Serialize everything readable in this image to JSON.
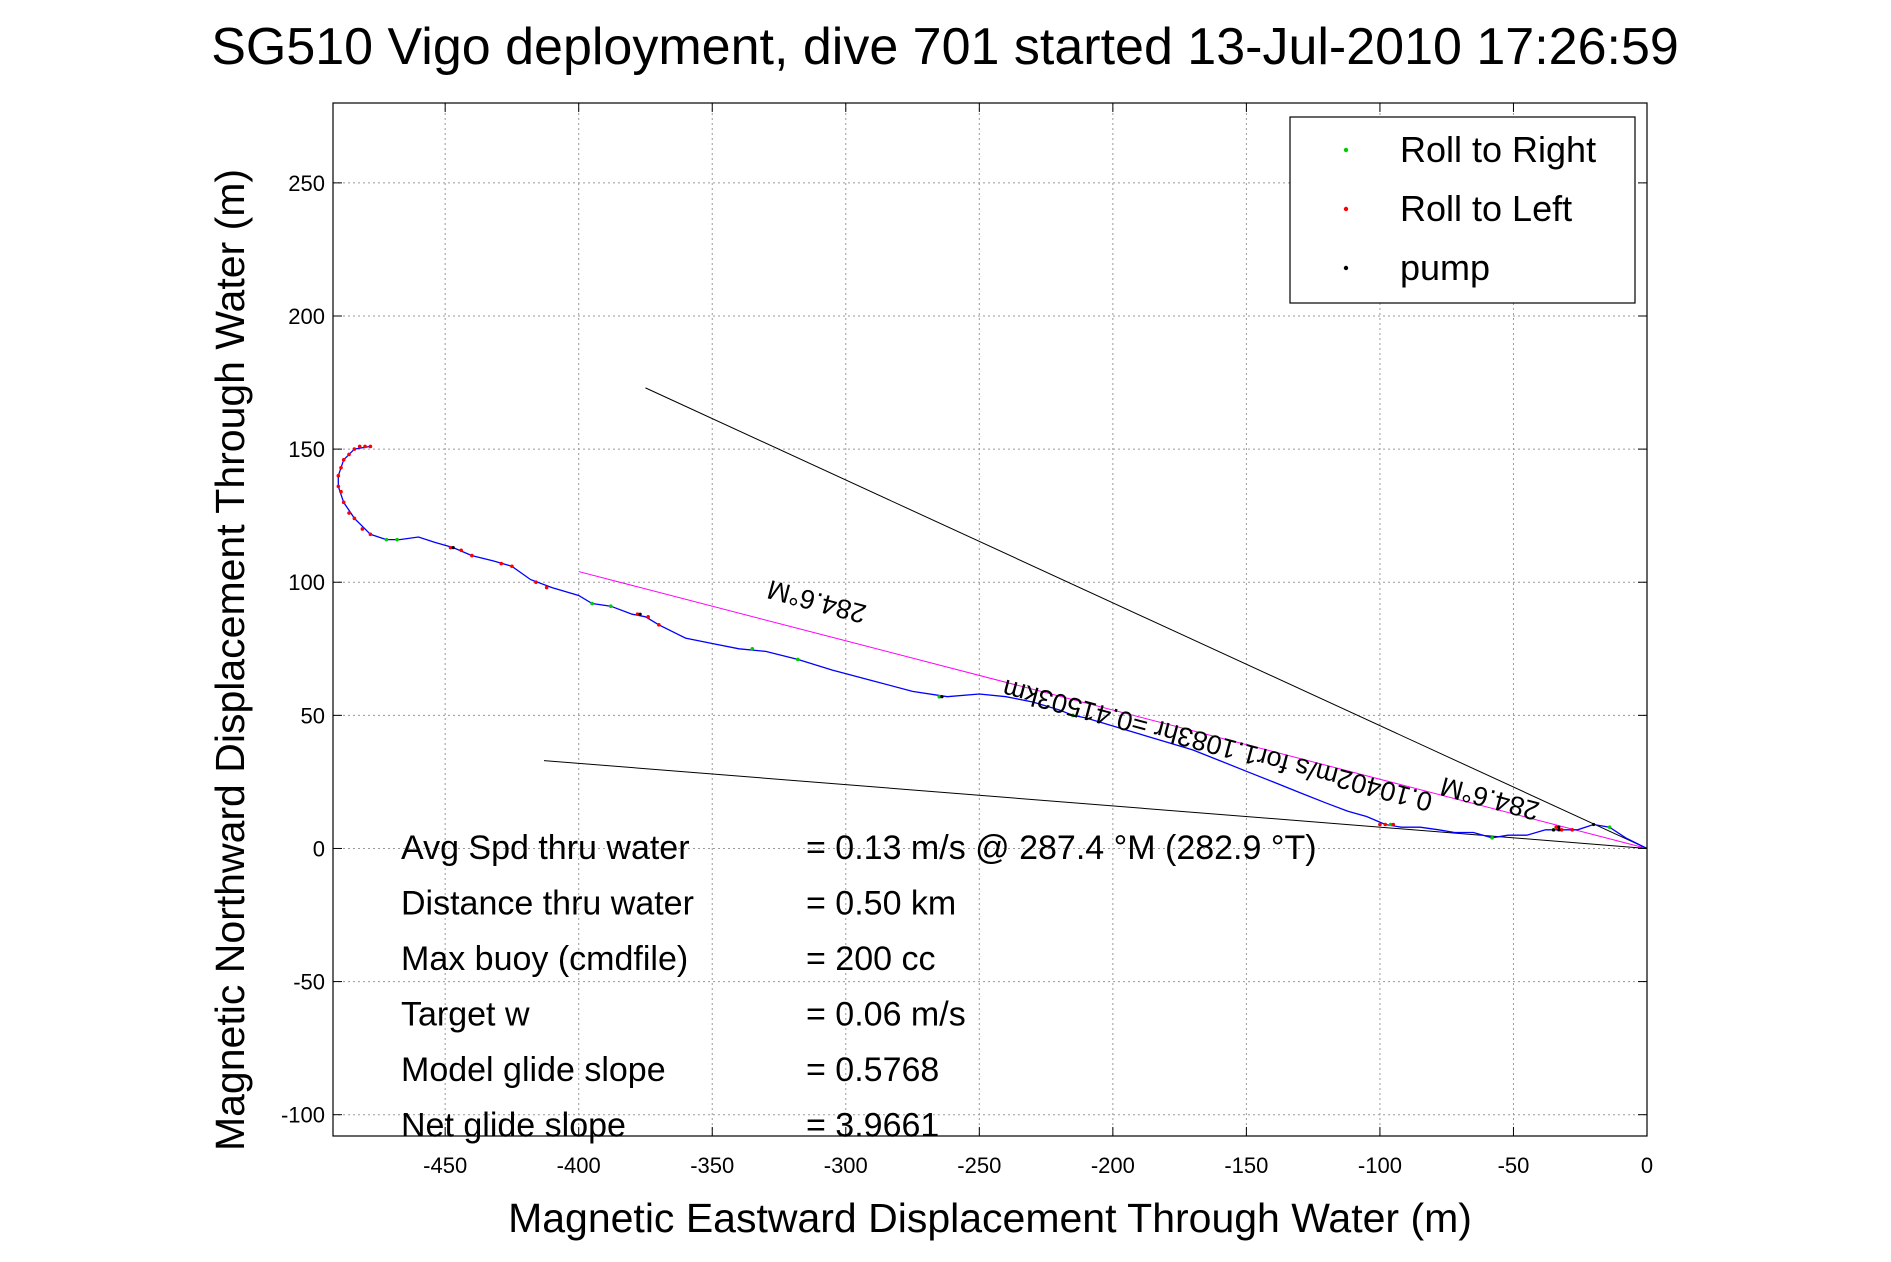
{
  "chart_data": {
    "type": "scatter",
    "title": "SG510 Vigo deployment, dive 701 started 13-Jul-2010 17:26:59",
    "xlabel": "Magnetic Eastward Displacement Through Water (m)",
    "ylabel": "Magnetic Northward Displacement Through Water (m)",
    "xlim": [
      -492,
      0
    ],
    "ylim": [
      -108,
      280
    ],
    "xticks": [
      -450,
      -400,
      -350,
      -300,
      -250,
      -200,
      -150,
      -100,
      -50,
      0
    ],
    "yticks": [
      -100,
      -50,
      0,
      50,
      100,
      150,
      200,
      250
    ],
    "grid": true,
    "legend": {
      "placement": "top-right",
      "entries": [
        {
          "label": "Roll to Right",
          "color": "#00cc00"
        },
        {
          "label": "Roll to Left",
          "color": "#ff0000"
        },
        {
          "label": "pump",
          "color": "#000000"
        }
      ]
    },
    "track": {
      "color": "#0000ff",
      "points": [
        [
          0,
          0
        ],
        [
          -8,
          4
        ],
        [
          -14,
          8
        ],
        [
          -20,
          9
        ],
        [
          -26,
          7
        ],
        [
          -32,
          7
        ],
        [
          -38,
          7
        ],
        [
          -45,
          5
        ],
        [
          -52,
          5
        ],
        [
          -58,
          4
        ],
        [
          -65,
          6
        ],
        [
          -72,
          6
        ],
        [
          -78,
          7
        ],
        [
          -85,
          8
        ],
        [
          -92,
          8
        ],
        [
          -98,
          9
        ],
        [
          -105,
          12
        ],
        [
          -112,
          14
        ],
        [
          -120,
          17
        ],
        [
          -130,
          21
        ],
        [
          -140,
          25
        ],
        [
          -150,
          29
        ],
        [
          -160,
          33
        ],
        [
          -170,
          37
        ],
        [
          -180,
          40
        ],
        [
          -190,
          43
        ],
        [
          -200,
          46
        ],
        [
          -210,
          49
        ],
        [
          -215,
          50
        ],
        [
          -220,
          52
        ],
        [
          -230,
          55
        ],
        [
          -240,
          57
        ],
        [
          -250,
          58
        ],
        [
          -262,
          57
        ],
        [
          -275,
          59
        ],
        [
          -290,
          63
        ],
        [
          -305,
          67
        ],
        [
          -318,
          71
        ],
        [
          -330,
          74
        ],
        [
          -340,
          75
        ],
        [
          -350,
          77
        ],
        [
          -360,
          79
        ],
        [
          -370,
          84
        ],
        [
          -375,
          87
        ],
        [
          -380,
          88
        ],
        [
          -388,
          91
        ],
        [
          -395,
          92
        ],
        [
          -400,
          95
        ],
        [
          -410,
          98
        ],
        [
          -418,
          101
        ],
        [
          -425,
          106
        ],
        [
          -432,
          108
        ],
        [
          -440,
          110
        ],
        [
          -447,
          113
        ],
        [
          -454,
          115
        ],
        [
          -460,
          117
        ],
        [
          -467,
          116
        ],
        [
          -472,
          116
        ],
        [
          -478,
          118
        ],
        [
          -484,
          124
        ],
        [
          -488,
          130
        ],
        [
          -490,
          136
        ],
        [
          -490,
          140
        ],
        [
          -488,
          146
        ],
        [
          -484,
          150
        ],
        [
          -478,
          151
        ]
      ]
    },
    "roll_right_points": [
      [
        -14,
        8
      ],
      [
        -35,
        7
      ],
      [
        -58,
        4
      ],
      [
        -96,
        9
      ],
      [
        -215,
        50
      ],
      [
        -265,
        57
      ],
      [
        -318,
        71
      ],
      [
        -335,
        75
      ],
      [
        -388,
        91
      ],
      [
        -395,
        92
      ],
      [
        -468,
        116
      ],
      [
        -472,
        116
      ]
    ],
    "roll_left_points": [
      [
        -28,
        7
      ],
      [
        -32,
        7
      ],
      [
        -34,
        8
      ],
      [
        -95,
        9
      ],
      [
        -98,
        9
      ],
      [
        -100,
        9
      ],
      [
        -370,
        84
      ],
      [
        -374,
        87
      ],
      [
        -378,
        88
      ],
      [
        -412,
        98
      ],
      [
        -416,
        100
      ],
      [
        -425,
        106
      ],
      [
        -429,
        107
      ],
      [
        -440,
        110
      ],
      [
        -444,
        112
      ],
      [
        -448,
        113
      ],
      [
        -478,
        118
      ],
      [
        -481,
        120
      ],
      [
        -484,
        124
      ],
      [
        -486,
        126
      ],
      [
        -488,
        130
      ],
      [
        -489,
        134
      ],
      [
        -490,
        136
      ],
      [
        -490,
        140
      ],
      [
        -489,
        143
      ],
      [
        -488,
        146
      ],
      [
        -486,
        148
      ],
      [
        -484,
        150
      ],
      [
        -482,
        151
      ],
      [
        -480,
        151
      ],
      [
        -478,
        151
      ]
    ],
    "pump_points": [
      [
        -20,
        9
      ],
      [
        -35,
        7
      ],
      [
        -33,
        8
      ],
      [
        -33,
        7
      ],
      [
        -264,
        57
      ],
      [
        -377,
        88
      ],
      [
        -447,
        113
      ]
    ],
    "lines": [
      {
        "color": "#000000",
        "from": [
          0,
          0
        ],
        "to": [
          -375,
          173
        ]
      },
      {
        "color": "#000000",
        "from": [
          0,
          0
        ],
        "to": [
          -413,
          33
        ]
      },
      {
        "color": "#ff00ff",
        "from": [
          0,
          0
        ],
        "to": [
          -400,
          104
        ]
      }
    ],
    "annotations": [
      {
        "text": "284.6°M",
        "x": -310,
        "y": 96,
        "rotation": 195
      },
      {
        "text": "0.10402m/s for1.1083hr =0.41503km",
        "x": -160,
        "y": 42,
        "rotation": 195
      },
      {
        "text": "284.6°M",
        "x": -58,
        "y": 22,
        "rotation": 195
      }
    ],
    "stats": [
      {
        "label": "Avg Spd thru water",
        "value": "=  0.13 m/s @ 287.4 °M (282.9 °T)"
      },
      {
        "label": "Distance thru water",
        "value": "=  0.50 km"
      },
      {
        "label": "Max buoy (cmdfile)",
        "value": "= 200 cc"
      },
      {
        "label": "Target w",
        "value": "= 0.06 m/s"
      },
      {
        "label": "Model glide slope",
        "value": "= 0.5768"
      },
      {
        "label": "Net glide slope",
        "value": "= 3.9661"
      }
    ]
  }
}
